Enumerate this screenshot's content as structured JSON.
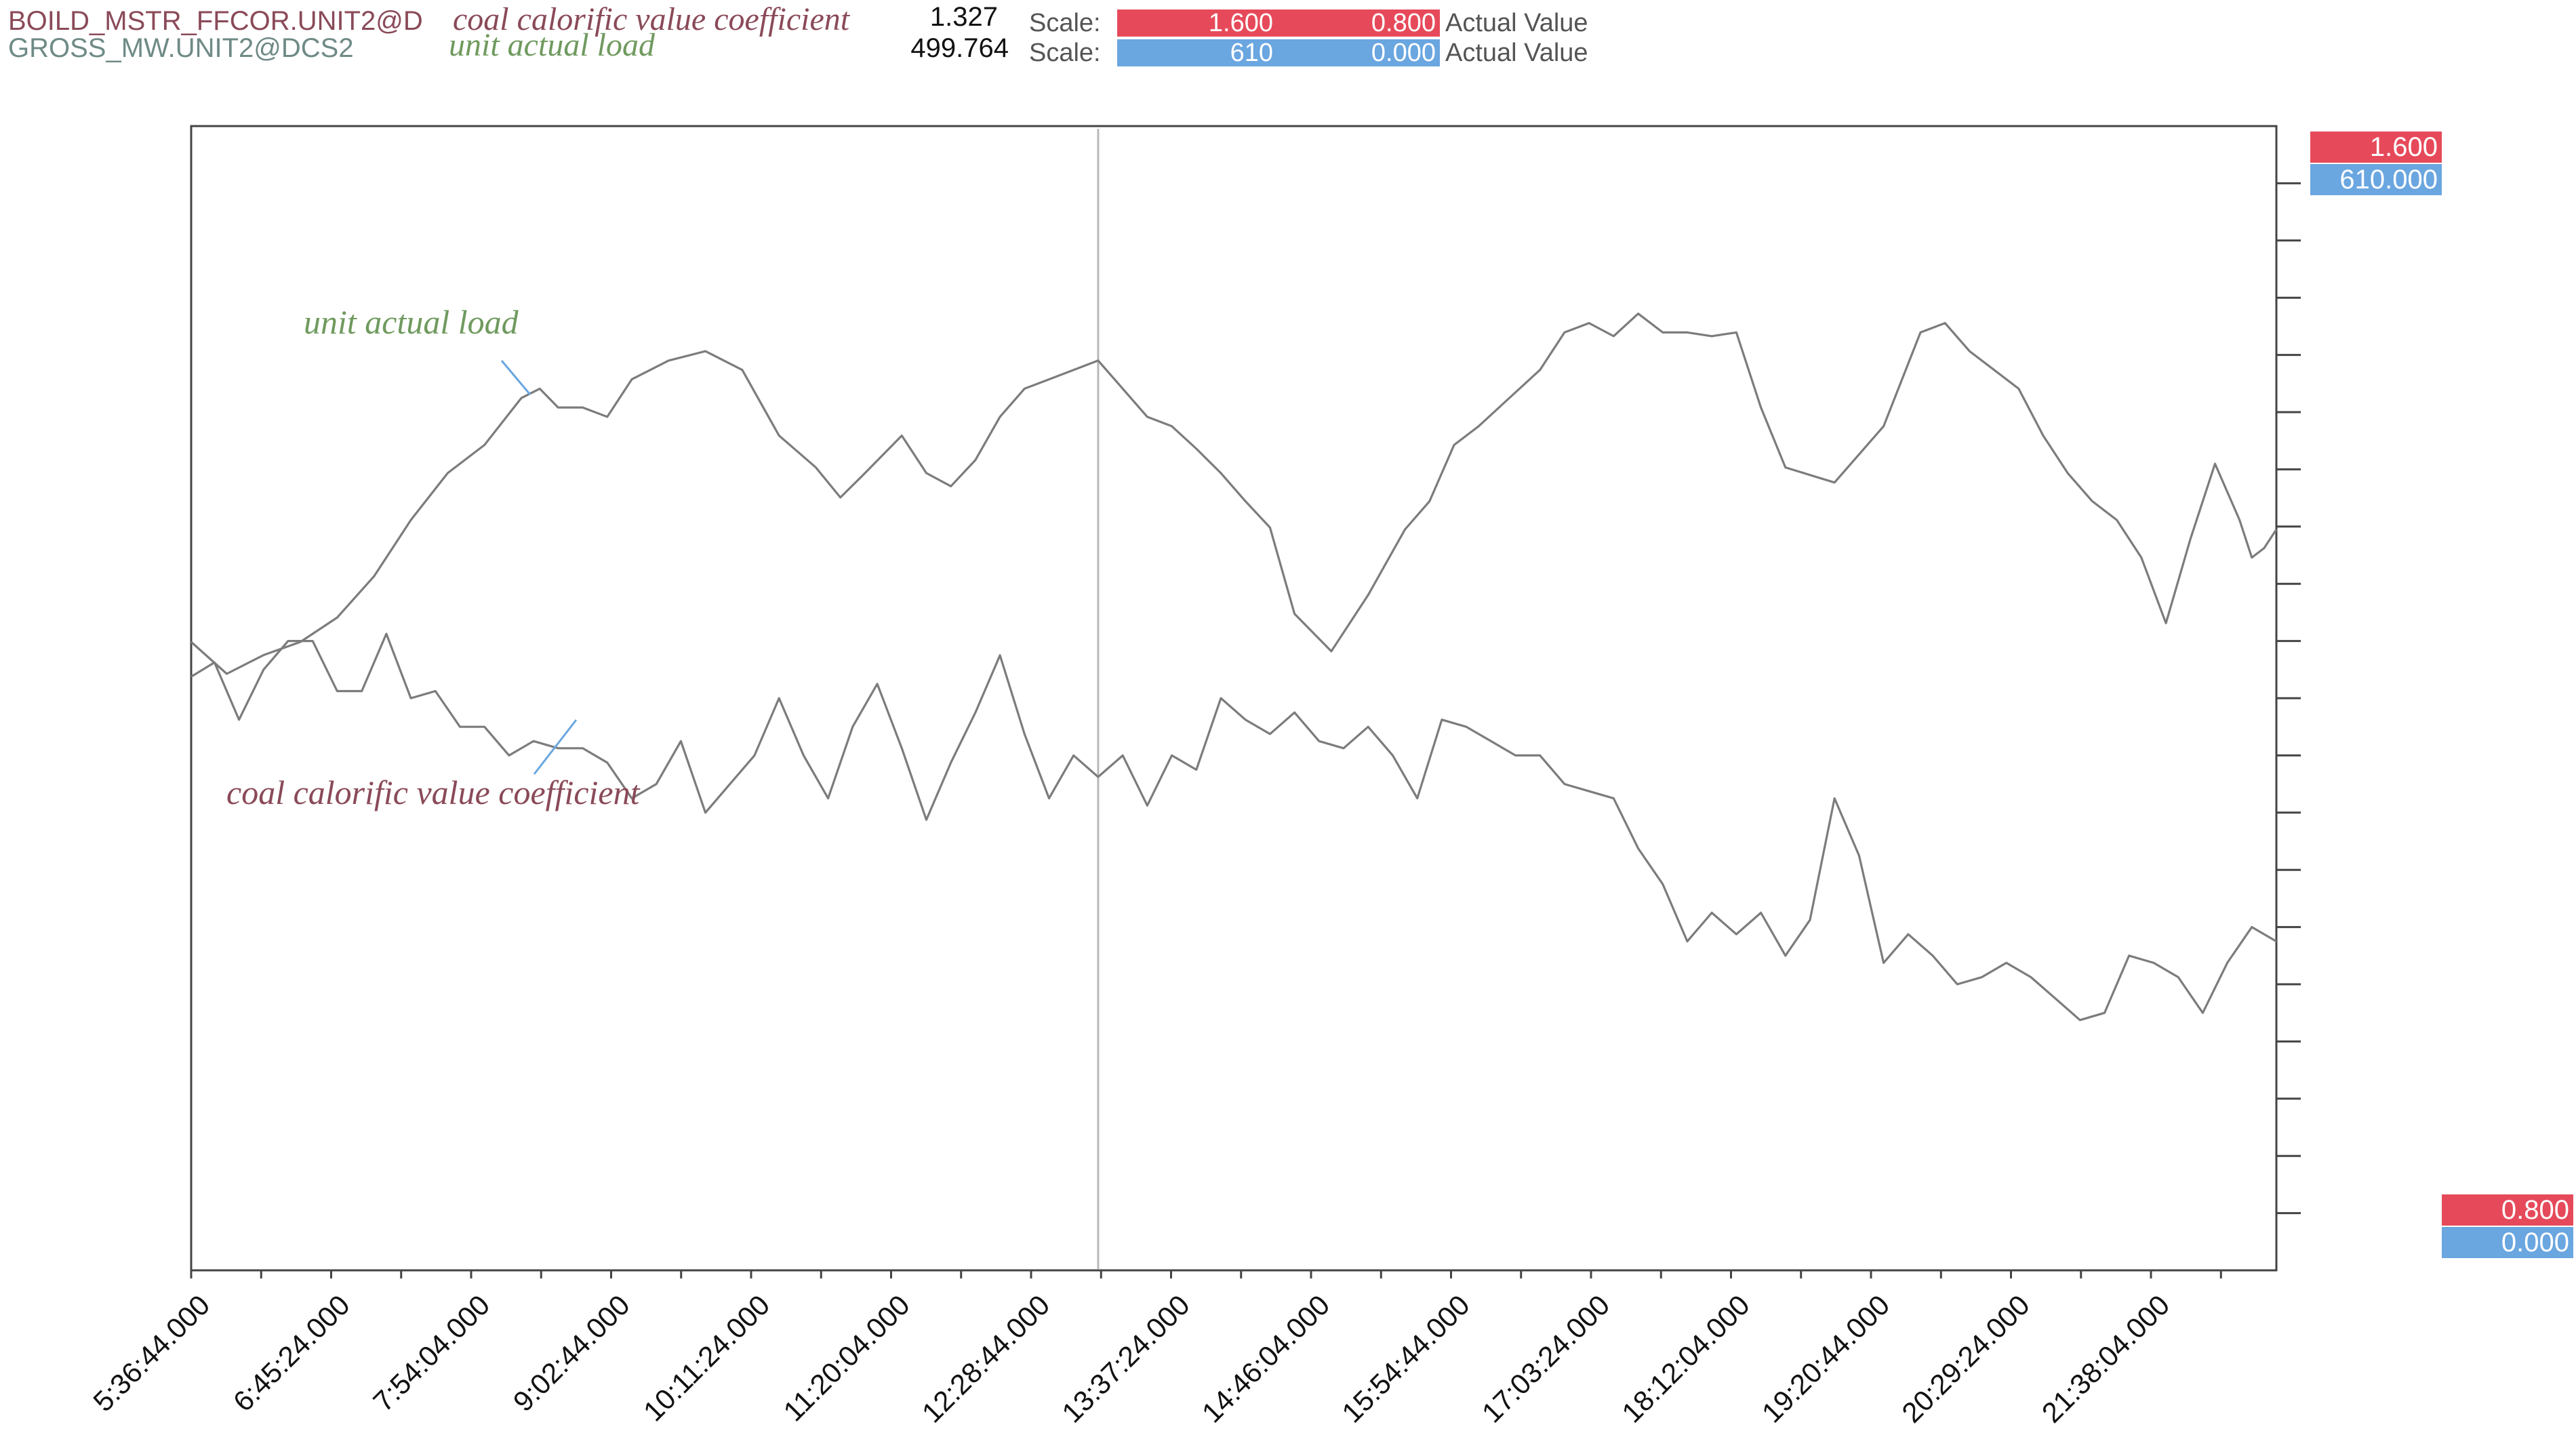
{
  "header": {
    "rows": [
      {
        "tag": "BOILD_MSTR_FFCOR.UNIT2@D",
        "description": "coal calorific value coefficient",
        "current_value": "1.327",
        "scale_label": "Scale:",
        "scale_max": "1.600",
        "scale_min": "0.800",
        "mode": "Actual Value",
        "color": "#e64a5a"
      },
      {
        "tag": "GROSS_MW.UNIT2@DCS2",
        "description": "unit actual load",
        "current_value": "499.764",
        "scale_label": "Scale:",
        "scale_max": "610",
        "scale_min": "0.000",
        "mode": "Actual Value",
        "color": "#6aa6e0"
      }
    ]
  },
  "axis_badges": {
    "top_red": "1.600",
    "top_blue": "610.000",
    "bottom_red": "0.800",
    "bottom_blue": "0.000"
  },
  "colors": {
    "coef_text": "#8a4a58",
    "load_text": "#6f9a5e",
    "line": "#7c7c7c",
    "axis": "#333333",
    "red_badge": "#e64a5a",
    "blue_badge": "#6aa6e0"
  },
  "chart_data": {
    "type": "line",
    "title": "",
    "xlabel": "",
    "ylabel": "",
    "x_ticks": [
      "5:36:44.000",
      "6:45:24.000",
      "7:54:04.000",
      "9:02:44.000",
      "10:11:24.000",
      "11:20:04.000",
      "12:28:44.000",
      "13:37:24.000",
      "14:46:04.000",
      "15:54:44.000",
      "17:03:24.000",
      "18:12:04.000",
      "19:20:44.000",
      "20:29:24.000",
      "21:38:04.000"
    ],
    "x_range_hours": [
      5.61,
      22.6
    ],
    "cursor_time_hours": 13.0,
    "annotations": [
      "unit actual load",
      "coal calorific value coefficient"
    ],
    "series": [
      {
        "name": "unit actual load",
        "tag": "GROSS_MW.UNIT2@DCS2",
        "ylim": [
          0,
          610
        ],
        "x_hours": [
          5.61,
          5.9,
          6.2,
          6.5,
          6.8,
          7.1,
          7.4,
          7.7,
          8.0,
          8.3,
          8.45,
          8.6,
          8.8,
          9.0,
          9.2,
          9.5,
          9.8,
          10.1,
          10.4,
          10.7,
          10.9,
          11.1,
          11.4,
          11.6,
          11.8,
          12.0,
          12.2,
          12.4,
          12.6,
          12.8,
          13.0,
          13.2,
          13.4,
          13.6,
          13.8,
          14.0,
          14.2,
          14.4,
          14.6,
          14.9,
          15.2,
          15.5,
          15.7,
          15.9,
          16.1,
          16.3,
          16.6,
          16.8,
          17.0,
          17.2,
          17.4,
          17.6,
          17.8,
          18.0,
          18.2,
          18.4,
          18.6,
          19.0,
          19.4,
          19.7,
          19.9,
          20.1,
          20.3,
          20.5,
          20.7,
          20.9,
          21.1,
          21.3,
          21.5,
          21.7,
          21.9,
          22.1,
          22.3,
          22.4,
          22.5,
          22.6
        ],
        "values": [
          335,
          318,
          328,
          335,
          348,
          370,
          400,
          425,
          440,
          465,
          470,
          460,
          460,
          455,
          475,
          485,
          490,
          480,
          445,
          428,
          412,
          425,
          445,
          425,
          418,
          432,
          455,
          470,
          475,
          480,
          485,
          470,
          455,
          450,
          438,
          425,
          410,
          396,
          350,
          330,
          360,
          395,
          410,
          440,
          450,
          462,
          480,
          500,
          505,
          498,
          510,
          500,
          500,
          498,
          500,
          460,
          428,
          420,
          450,
          500,
          505,
          490,
          480,
          470,
          445,
          425,
          410,
          400,
          380,
          345,
          390,
          430,
          400,
          380,
          385,
          395
        ]
      },
      {
        "name": "coal calorific value coefficient",
        "tag": "BOILD_MSTR_FFCOR.UNIT2@D",
        "ylim": [
          0.8,
          1.6
        ],
        "x_hours": [
          5.61,
          5.8,
          6.0,
          6.2,
          6.4,
          6.6,
          6.8,
          7.0,
          7.2,
          7.4,
          7.6,
          7.8,
          8.0,
          8.2,
          8.4,
          8.6,
          8.8,
          9.0,
          9.2,
          9.4,
          9.6,
          9.8,
          10.0,
          10.2,
          10.4,
          10.6,
          10.8,
          11.0,
          11.2,
          11.4,
          11.6,
          11.8,
          12.0,
          12.2,
          12.4,
          12.6,
          12.8,
          13.0,
          13.2,
          13.4,
          13.6,
          13.8,
          14.0,
          14.2,
          14.4,
          14.6,
          14.8,
          15.0,
          15.2,
          15.4,
          15.6,
          15.8,
          16.0,
          16.2,
          16.4,
          16.6,
          16.8,
          17.0,
          17.2,
          17.4,
          17.6,
          17.8,
          18.0,
          18.2,
          18.4,
          18.6,
          18.8,
          19.0,
          19.2,
          19.4,
          19.6,
          19.8,
          20.0,
          20.2,
          20.4,
          20.6,
          20.8,
          21.0,
          21.2,
          21.4,
          21.6,
          21.8,
          22.0,
          22.2,
          22.4,
          22.6
        ],
        "values": [
          1.215,
          1.225,
          1.185,
          1.22,
          1.24,
          1.24,
          1.205,
          1.205,
          1.245,
          1.2,
          1.205,
          1.18,
          1.18,
          1.16,
          1.17,
          1.165,
          1.165,
          1.155,
          1.13,
          1.14,
          1.17,
          1.12,
          1.14,
          1.16,
          1.2,
          1.16,
          1.13,
          1.18,
          1.21,
          1.165,
          1.115,
          1.155,
          1.19,
          1.23,
          1.175,
          1.13,
          1.16,
          1.145,
          1.16,
          1.125,
          1.16,
          1.15,
          1.2,
          1.185,
          1.175,
          1.19,
          1.17,
          1.165,
          1.18,
          1.16,
          1.13,
          1.185,
          1.18,
          1.17,
          1.16,
          1.16,
          1.14,
          1.135,
          1.13,
          1.095,
          1.07,
          1.03,
          1.05,
          1.035,
          1.05,
          1.02,
          1.045,
          1.13,
          1.09,
          1.015,
          1.035,
          1.02,
          1.0,
          1.005,
          1.015,
          1.005,
          0.99,
          0.975,
          0.98,
          1.02,
          1.015,
          1.005,
          0.98,
          1.015,
          1.04,
          1.03
        ]
      }
    ]
  }
}
